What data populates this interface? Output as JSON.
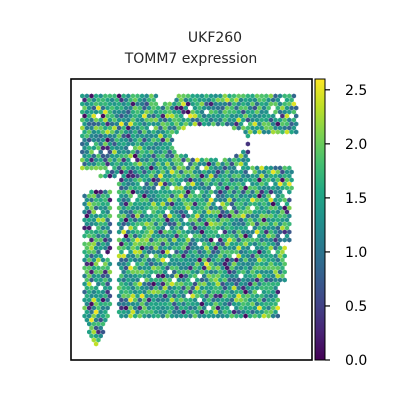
{
  "chart_data": {
    "type": "scatter",
    "title_lines": [
      "UKF260",
      "TOMM7 expression"
    ],
    "xlabel": "",
    "ylabel": "",
    "x_axis_visible": false,
    "y_axis_visible": false,
    "grid": false,
    "colorbar": {
      "colormap": "viridis",
      "range": [
        0.0,
        2.6
      ],
      "ticks": [
        0.0,
        0.5,
        1.0,
        1.5,
        2.0,
        2.5
      ],
      "tick_labels": [
        "0.0",
        "0.5",
        "1.0",
        "1.5",
        "2.0",
        "2.5"
      ],
      "position": "right"
    },
    "marker": "hexagon",
    "value_distribution": {
      "dominant_range": [
        1.0,
        2.0
      ],
      "min": 0.0,
      "max": 2.6,
      "description_of_regions": "main tissue block and narrow left strip with an unsampled hole near the top"
    },
    "colors": {
      "viridis_low": "#440154",
      "viridis_mid": "#21918c",
      "viridis_high": "#fde725",
      "frame": "#000000"
    }
  }
}
